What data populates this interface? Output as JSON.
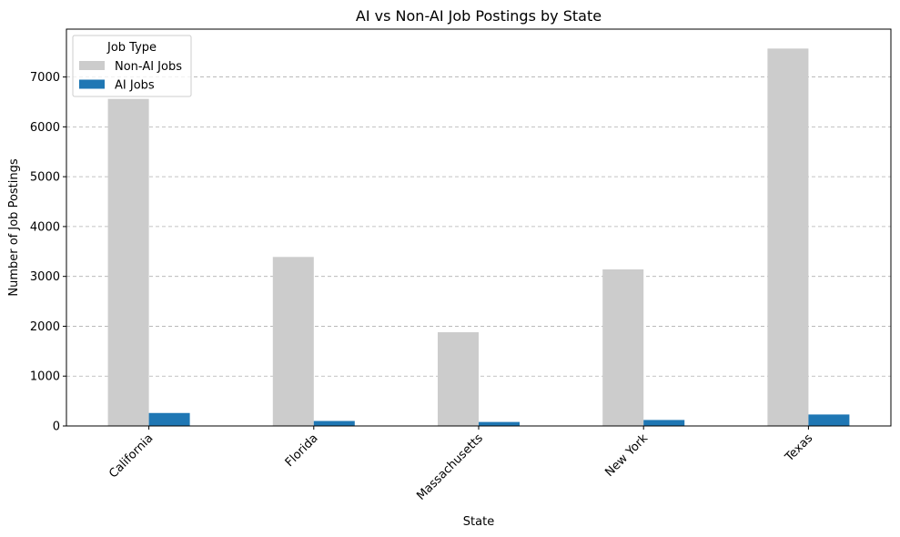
{
  "chart_data": {
    "type": "bar",
    "title": "AI vs Non-AI Job Postings by State",
    "xlabel": "State",
    "ylabel": "Number of Job Postings",
    "categories": [
      "California",
      "Florida",
      "Massachusetts",
      "New York",
      "Texas"
    ],
    "series": [
      {
        "name": "Non-AI Jobs",
        "color": "#cccccc",
        "values": [
          6560,
          3390,
          1880,
          3140,
          7570
        ]
      },
      {
        "name": "AI Jobs",
        "color": "#1f77b4",
        "values": [
          260,
          100,
          80,
          120,
          230
        ]
      }
    ],
    "ylim": [
      0,
      7960
    ],
    "yticks": [
      0,
      1000,
      2000,
      3000,
      4000,
      5000,
      6000,
      7000
    ],
    "grid": "horizontal dashed",
    "legend": {
      "title": "Job Type",
      "placement": "top-left"
    },
    "xtick_rotation": 45
  }
}
